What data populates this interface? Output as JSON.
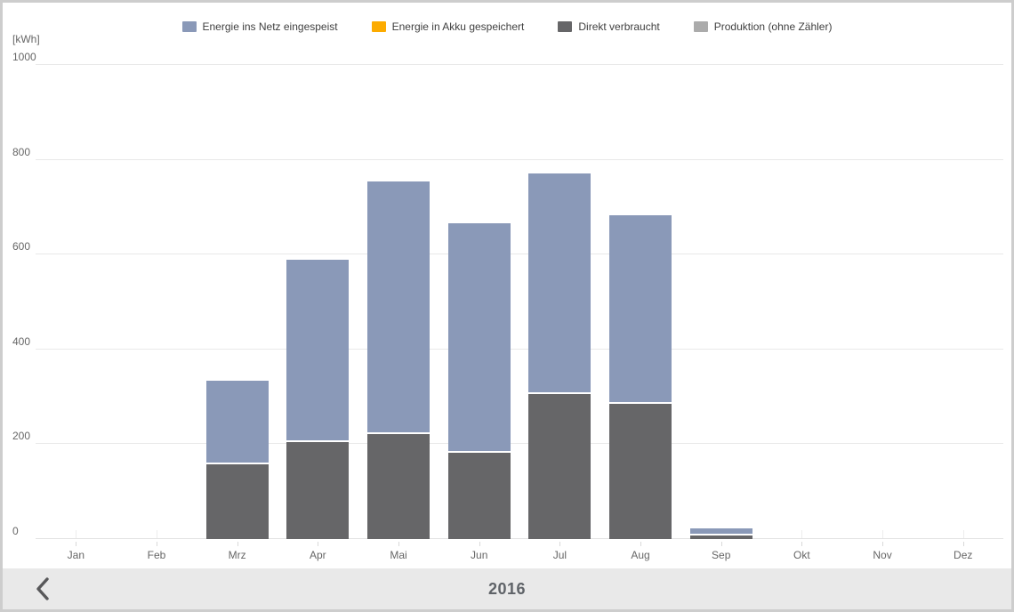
{
  "unit_label": "[kWh]",
  "legend": [
    {
      "label": "Energie ins Netz eingespeist",
      "color": "#8a99b8"
    },
    {
      "label": "Energie in Akku gespeichert",
      "color": "#fcab00"
    },
    {
      "label": "Direkt verbraucht",
      "color": "#666668"
    },
    {
      "label": "Produktion (ohne Zähler)",
      "color": "#ababab"
    }
  ],
  "chart_data": {
    "type": "bar",
    "stacked": true,
    "stack_order": "bottom-to-top",
    "title": "",
    "ylabel": "[kWh]",
    "ylim": [
      0,
      1000
    ],
    "yticks": [
      0,
      200,
      400,
      600,
      800,
      1000
    ],
    "grid": "horizontal",
    "legend_position": "top",
    "categories": [
      "Jan",
      "Feb",
      "Mrz",
      "Apr",
      "Mai",
      "Jun",
      "Jul",
      "Aug",
      "Sep",
      "Okt",
      "Nov",
      "Dez"
    ],
    "series": [
      {
        "name": "Direkt verbraucht",
        "color": "#666668",
        "values": [
          0,
          0,
          158,
          205,
          222,
          182,
          305,
          285,
          7,
          0,
          0,
          0
        ]
      },
      {
        "name": "Energie in Akku gespeichert",
        "color": "#fcab00",
        "values": [
          0,
          0,
          0,
          0,
          0,
          0,
          0,
          0,
          0,
          0,
          0,
          0
        ]
      },
      {
        "name": "Energie ins Netz eingespeist",
        "color": "#8a99b8",
        "values": [
          0,
          0,
          176,
          384,
          532,
          484,
          466,
          398,
          15,
          0,
          0,
          0
        ]
      },
      {
        "name": "Produktion (ohne Zähler)",
        "color": "#ababab",
        "values": [
          0,
          0,
          0,
          0,
          0,
          0,
          0,
          0,
          0,
          0,
          0,
          0
        ]
      }
    ]
  },
  "footer": {
    "year_label": "2016",
    "prev_button_icon": "chevron-left-icon"
  }
}
